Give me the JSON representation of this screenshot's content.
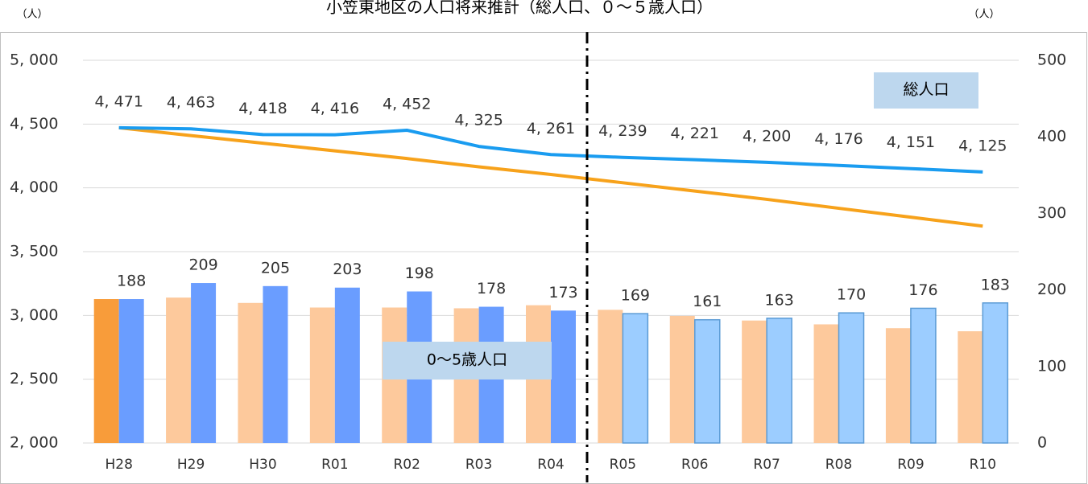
{
  "chart_data": {
    "type": "bar",
    "title": "小笠東地区の人口将来推計（総人口、０～５歳人口）",
    "ylabel": "（人）",
    "y2label": "（人）",
    "categories": [
      "H28",
      "H29",
      "H30",
      "R01",
      "R02",
      "R03",
      "R04",
      "R05",
      "R06",
      "R07",
      "R08",
      "R09",
      "R10"
    ],
    "ylim": [
      2000,
      5000
    ],
    "yticks": [
      {
        "value": 2000,
        "label": "2, 000"
      },
      {
        "value": 2500,
        "label": "2, 500"
      },
      {
        "value": 3000,
        "label": "3, 000"
      },
      {
        "value": 3500,
        "label": "3, 500"
      },
      {
        "value": 4000,
        "label": "4, 000"
      },
      {
        "value": 4500,
        "label": "4, 500"
      },
      {
        "value": 5000,
        "label": "5, 000"
      }
    ],
    "y2lim": [
      0,
      500
    ],
    "y2ticks": [
      0,
      100,
      200,
      300,
      400,
      500
    ],
    "grid": true,
    "annotations": [
      "総人口",
      "0～5歳人口"
    ],
    "series": [
      {
        "type": "bar",
        "axis": "y2",
        "colors": [
          "#f89c3a",
          "#fdc99c",
          "#fdc99c",
          "#fdc99c",
          "#fdc99c",
          "#fdc99c",
          "#fdc99c",
          "#fdc99c",
          "#fdc99c",
          "#fdc99c",
          "#fdc99c",
          "#fdc99c",
          "#fdc99c"
        ],
        "values": [
          188,
          190,
          183,
          177,
          177,
          176,
          180,
          174,
          166,
          160,
          155,
          150,
          146
        ]
      },
      {
        "type": "bar",
        "axis": "y2",
        "name": "0～5歳人口",
        "colors": [
          "#6a9dff",
          "#6a9dff",
          "#6a9dff",
          "#6a9dff",
          "#6a9dff",
          "#6a9dff",
          "#6a9dff",
          "#9ccdff",
          "#9ccdff",
          "#9ccdff",
          "#9ccdff",
          "#9ccdff",
          "#9ccdff"
        ],
        "values": [
          188,
          209,
          205,
          203,
          198,
          178,
          173,
          169,
          161,
          163,
          170,
          176,
          183
        ]
      },
      {
        "type": "line",
        "color": "#f7a21b",
        "values": [
          4471,
          4410,
          4350,
          4290,
          4230,
          4165,
          4105,
          4040,
          3975,
          3910,
          3840,
          3770,
          3700
        ]
      },
      {
        "type": "line",
        "name": "総人口",
        "color": "#1a9cf0",
        "values": [
          4471,
          4463,
          4418,
          4416,
          4452,
          4325,
          4261,
          4239,
          4221,
          4200,
          4176,
          4151,
          4125
        ],
        "value_labels": [
          "4, 471",
          "4, 463",
          "4, 418",
          "4, 416",
          "4, 452",
          "4, 325",
          "4, 261",
          "4, 239",
          "4, 221",
          "4, 200",
          "4, 176",
          "4, 151",
          "4, 125"
        ]
      }
    ]
  }
}
